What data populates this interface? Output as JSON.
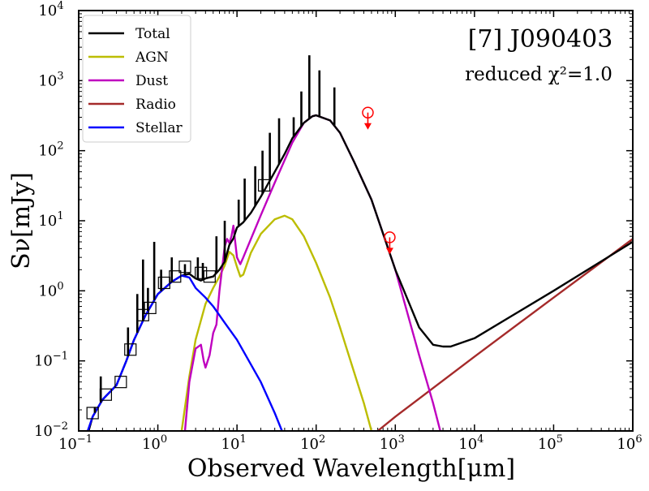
{
  "chart_data": {
    "type": "line",
    "title": "[7] J090403",
    "subtitle": "reduced χ²=1.0",
    "xlabel": "Observed Wavelength[μm]",
    "ylabel": "Sν[mJy]",
    "xscale": "log",
    "yscale": "log",
    "xlim": [
      0.1,
      1000000
    ],
    "ylim": [
      0.01,
      10000
    ],
    "x_ticks": [
      {
        "value": 0.1,
        "label": "10",
        "exp": "−1"
      },
      {
        "value": 1,
        "label": "10",
        "exp": "0"
      },
      {
        "value": 10,
        "label": "10",
        "exp": "1"
      },
      {
        "value": 100,
        "label": "10",
        "exp": "2"
      },
      {
        "value": 1000,
        "label": "10",
        "exp": "3"
      },
      {
        "value": 10000,
        "label": "10",
        "exp": "4"
      },
      {
        "value": 100000,
        "label": "10",
        "exp": "5"
      },
      {
        "value": 1000000,
        "label": "10",
        "exp": "6"
      }
    ],
    "y_ticks": [
      {
        "value": 0.01,
        "label": "10",
        "exp": "−2"
      },
      {
        "value": 0.1,
        "label": "10",
        "exp": "−1"
      },
      {
        "value": 1,
        "label": "10",
        "exp": "0"
      },
      {
        "value": 10,
        "label": "10",
        "exp": "1"
      },
      {
        "value": 100,
        "label": "10",
        "exp": "2"
      },
      {
        "value": 1000,
        "label": "10",
        "exp": "3"
      },
      {
        "value": 10000,
        "label": "10",
        "exp": "4"
      }
    ],
    "legend_position": "top-left",
    "series": [
      {
        "name": "Total",
        "color": "#000000",
        "points": [
          [
            0.13,
            0.009
          ],
          [
            0.15,
            0.016
          ],
          [
            0.2,
            0.028
          ],
          [
            0.3,
            0.045
          ],
          [
            0.4,
            0.1
          ],
          [
            0.5,
            0.2
          ],
          [
            0.7,
            0.45
          ],
          [
            1.0,
            0.9
          ],
          [
            1.5,
            1.35
          ],
          [
            2.0,
            1.65
          ],
          [
            2.5,
            1.75
          ],
          [
            3.0,
            1.5
          ],
          [
            3.5,
            1.4
          ],
          [
            4.0,
            1.5
          ],
          [
            5.0,
            1.6
          ],
          [
            6.0,
            2.0
          ],
          [
            7.0,
            2.6
          ],
          [
            8.0,
            4.5
          ],
          [
            9.0,
            5.6
          ],
          [
            10,
            8
          ],
          [
            12,
            9.5
          ],
          [
            15,
            13
          ],
          [
            20,
            22
          ],
          [
            30,
            50
          ],
          [
            40,
            90
          ],
          [
            50,
            150
          ],
          [
            70,
            250
          ],
          [
            90,
            310
          ],
          [
            100,
            320
          ],
          [
            150,
            270
          ],
          [
            200,
            180
          ],
          [
            300,
            70
          ],
          [
            500,
            20
          ],
          [
            1000,
            2.0
          ],
          [
            2000,
            0.3
          ],
          [
            3000,
            0.17
          ],
          [
            4000,
            0.16
          ],
          [
            5000,
            0.16
          ],
          [
            10000,
            0.21
          ],
          [
            100000,
            1.0
          ],
          [
            1000000,
            5.0
          ]
        ]
      },
      {
        "name": "AGN",
        "color": "#bcbd00",
        "points": [
          [
            2.0,
            0.01
          ],
          [
            2.5,
            0.06
          ],
          [
            3.0,
            0.2
          ],
          [
            4.0,
            0.65
          ],
          [
            5.0,
            1.1
          ],
          [
            6.0,
            1.6
          ],
          [
            7.0,
            2.3
          ],
          [
            8.0,
            3.6
          ],
          [
            9.0,
            3.2
          ],
          [
            10,
            2.2
          ],
          [
            11,
            1.6
          ],
          [
            12,
            1.7
          ],
          [
            15,
            3.5
          ],
          [
            20,
            6.5
          ],
          [
            30,
            10.5
          ],
          [
            40,
            11.8
          ],
          [
            50,
            10.5
          ],
          [
            70,
            6.0
          ],
          [
            100,
            2.5
          ],
          [
            150,
            0.8
          ],
          [
            200,
            0.3
          ],
          [
            300,
            0.07
          ],
          [
            400,
            0.025
          ],
          [
            500,
            0.01
          ]
        ]
      },
      {
        "name": "Dust",
        "color": "#bf00bf",
        "points": [
          [
            2.2,
            0.01
          ],
          [
            2.5,
            0.05
          ],
          [
            3.0,
            0.15
          ],
          [
            3.5,
            0.17
          ],
          [
            3.8,
            0.1
          ],
          [
            4.0,
            0.08
          ],
          [
            4.5,
            0.12
          ],
          [
            5.0,
            0.25
          ],
          [
            5.5,
            0.33
          ],
          [
            6.0,
            1.0
          ],
          [
            7.0,
            4.3
          ],
          [
            7.5,
            5.5
          ],
          [
            8.0,
            4.8
          ],
          [
            8.5,
            6.0
          ],
          [
            9.0,
            8.5
          ],
          [
            10,
            3.0
          ],
          [
            11,
            2.4
          ],
          [
            12,
            3.0
          ],
          [
            15,
            5.5
          ],
          [
            20,
            12
          ],
          [
            30,
            35
          ],
          [
            50,
            130
          ],
          [
            70,
            250
          ],
          [
            90,
            310
          ],
          [
            100,
            320
          ],
          [
            150,
            270
          ],
          [
            200,
            180
          ],
          [
            300,
            70
          ],
          [
            500,
            20
          ],
          [
            1000,
            2.0
          ],
          [
            2000,
            0.12
          ],
          [
            3000,
            0.025
          ],
          [
            3700,
            0.01
          ]
        ]
      },
      {
        "name": "Radio",
        "color": "#a52a2a",
        "points": [
          [
            600,
            0.01
          ],
          [
            1000,
            0.016
          ],
          [
            10000,
            0.115
          ],
          [
            100000,
            0.8
          ],
          [
            1000000,
            5.5
          ]
        ]
      },
      {
        "name": "Stellar",
        "color": "#0000ff",
        "points": [
          [
            0.13,
            0.01
          ],
          [
            0.15,
            0.016
          ],
          [
            0.2,
            0.028
          ],
          [
            0.3,
            0.045
          ],
          [
            0.4,
            0.1
          ],
          [
            0.5,
            0.2
          ],
          [
            0.7,
            0.45
          ],
          [
            1.0,
            0.9
          ],
          [
            1.5,
            1.35
          ],
          [
            2.0,
            1.65
          ],
          [
            2.5,
            1.55
          ],
          [
            3.0,
            1.1
          ],
          [
            4.0,
            0.8
          ],
          [
            5.0,
            0.6
          ],
          [
            7.0,
            0.35
          ],
          [
            10,
            0.2
          ],
          [
            20,
            0.05
          ],
          [
            30,
            0.018
          ],
          [
            37,
            0.01
          ]
        ]
      }
    ],
    "emission_spikes": [
      [
        0.16,
        0.022
      ],
      [
        0.19,
        0.06
      ],
      [
        0.42,
        0.3
      ],
      [
        0.55,
        0.9
      ],
      [
        0.65,
        2.8
      ],
      [
        0.75,
        1.1
      ],
      [
        0.9,
        5.0
      ],
      [
        1.1,
        2.0
      ],
      [
        1.5,
        3.0
      ],
      [
        2.2,
        2.4
      ],
      [
        3.2,
        3.0
      ],
      [
        3.7,
        2.5
      ],
      [
        5.5,
        6.0
      ],
      [
        7.0,
        10
      ],
      [
        10.5,
        20
      ],
      [
        12.5,
        40
      ],
      [
        17,
        60
      ],
      [
        21,
        100
      ],
      [
        26,
        180
      ],
      [
        34,
        290
      ],
      [
        52,
        300
      ],
      [
        65,
        700
      ],
      [
        82,
        2300
      ],
      [
        110,
        1400
      ],
      [
        170,
        800
      ]
    ],
    "photometry": [
      [
        0.15,
        0.018
      ],
      [
        0.22,
        0.033
      ],
      [
        0.34,
        0.05
      ],
      [
        0.45,
        0.145
      ],
      [
        0.65,
        0.45
      ],
      [
        0.8,
        0.57
      ],
      [
        1.2,
        1.3
      ],
      [
        1.65,
        1.6
      ],
      [
        2.2,
        2.2
      ],
      [
        3.5,
        1.8
      ],
      [
        4.5,
        1.6
      ],
      [
        22,
        32
      ]
    ],
    "upper_limits": [
      [
        450,
        350
      ],
      [
        850,
        5.8
      ]
    ]
  }
}
